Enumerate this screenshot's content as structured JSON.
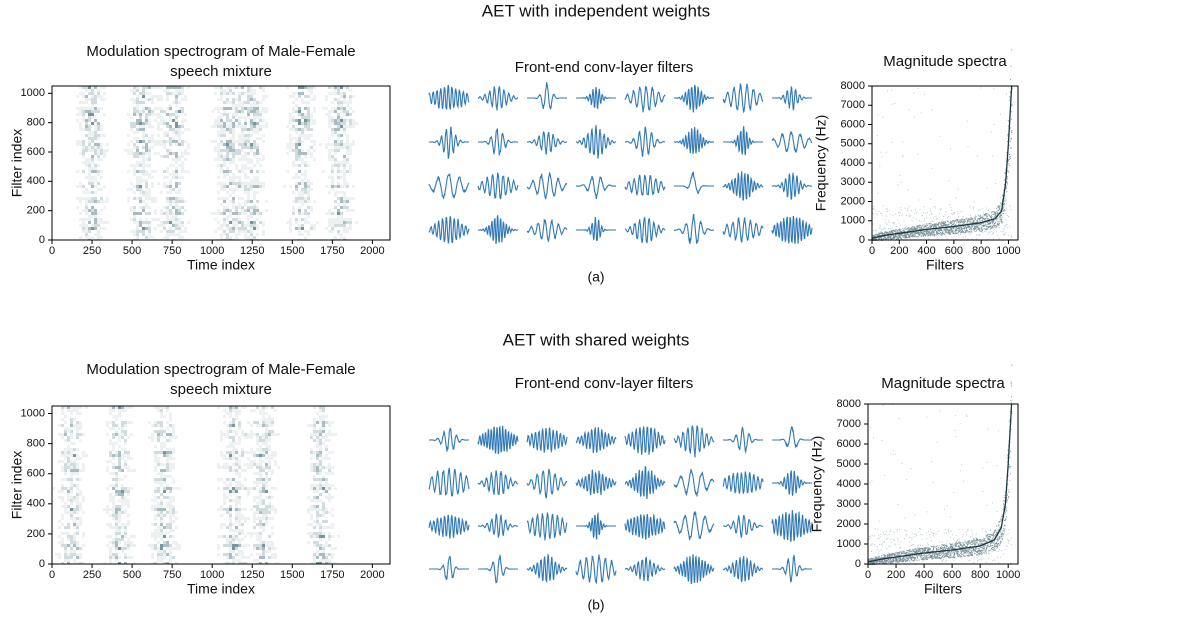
{
  "panels": [
    {
      "title": "AET with independent weights",
      "label": "(a)",
      "spectrogram": {
        "title": [
          "Modulation spectrogram of Male-Female",
          "speech mixture"
        ],
        "xlabel": "Time index",
        "ylabel": "Filter index",
        "xlim": [
          0,
          2110
        ],
        "ylim": [
          0,
          1050
        ],
        "xticks": [
          0,
          250,
          500,
          750,
          1000,
          1250,
          1500,
          1750,
          2000
        ],
        "yticks": [
          0,
          200,
          400,
          600,
          800,
          1000
        ]
      },
      "filters": {
        "title": "Front-end conv-layer filters"
      },
      "spectra": {
        "title": "Magnitude spectra",
        "xlabel": "Filters",
        "ylabel": "Frequency (Hz)",
        "xlim": [
          0,
          1070
        ],
        "ylim": [
          0,
          8000
        ],
        "xticks": [
          0,
          200,
          400,
          600,
          800,
          1000
        ],
        "yticks": [
          0,
          1000,
          2000,
          3000,
          4000,
          5000,
          6000,
          7000,
          8000
        ],
        "curve": {
          "x": [
            0,
            100,
            200,
            400,
            600,
            800,
            900,
            950,
            980,
            1000,
            1024
          ],
          "y": [
            100,
            250,
            350,
            550,
            700,
            900,
            1100,
            1500,
            3000,
            5000,
            8000
          ]
        }
      }
    },
    {
      "title": "AET with shared weights",
      "label": "(b)",
      "spectrogram": {
        "title": [
          "Modulation spectrogram of Male-Female",
          "speech mixture"
        ],
        "xlabel": "Time index",
        "ylabel": "Filter index",
        "xlim": [
          0,
          2110
        ],
        "ylim": [
          0,
          1050
        ],
        "xticks": [
          0,
          250,
          500,
          750,
          1000,
          1250,
          1500,
          1750,
          2000
        ],
        "yticks": [
          0,
          200,
          400,
          600,
          800,
          1000
        ]
      },
      "filters": {
        "title": "Front-end conv-layer filters"
      },
      "spectra": {
        "title": "Magnitude spectra",
        "xlabel": "Filters",
        "ylabel": "Frequency (Hz)",
        "xlim": [
          0,
          1070
        ],
        "ylim": [
          0,
          8000
        ],
        "xticks": [
          0,
          200,
          400,
          600,
          800,
          1000
        ],
        "yticks": [
          0,
          1000,
          2000,
          3000,
          4000,
          5000,
          6000,
          7000,
          8000
        ],
        "curve": {
          "x": [
            0,
            100,
            200,
            400,
            600,
            800,
            900,
            950,
            980,
            1000,
            1024
          ],
          "y": [
            100,
            250,
            350,
            550,
            700,
            900,
            1200,
            1800,
            3000,
            5000,
            8000
          ]
        }
      }
    }
  ]
}
